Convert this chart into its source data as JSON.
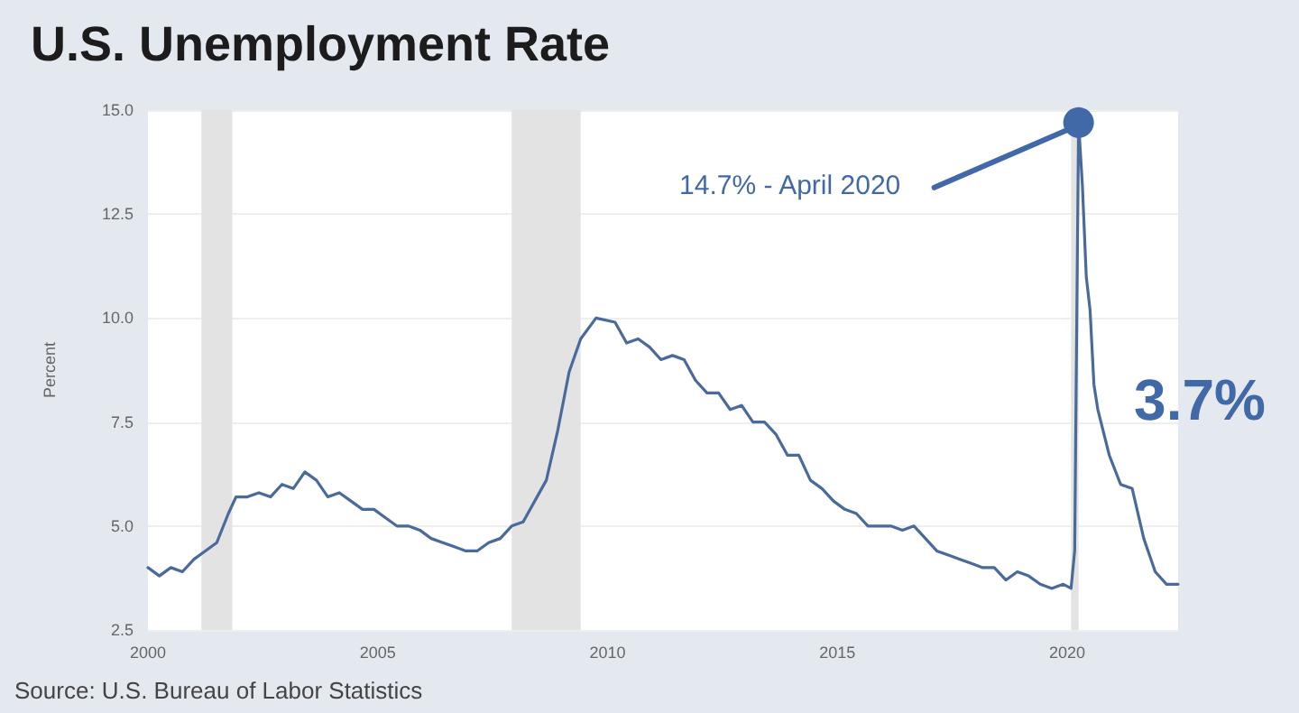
{
  "chart_data": {
    "type": "line",
    "title": "U.S. Unemployment Rate",
    "ylabel": "Percent",
    "x": [
      "2000-01",
      "2000-04",
      "2000-07",
      "2000-10",
      "2001-01",
      "2001-04",
      "2001-07",
      "2001-10",
      "2001-12",
      "2002-03",
      "2002-06",
      "2002-09",
      "2002-12",
      "2003-03",
      "2003-06",
      "2003-09",
      "2003-12",
      "2004-03",
      "2004-06",
      "2004-09",
      "2004-12",
      "2005-03",
      "2005-06",
      "2005-09",
      "2005-12",
      "2006-03",
      "2006-06",
      "2006-09",
      "2006-12",
      "2007-03",
      "2007-06",
      "2007-09",
      "2007-12",
      "2008-03",
      "2008-06",
      "2008-09",
      "2008-12",
      "2009-03",
      "2009-06",
      "2009-10",
      "2010-03",
      "2010-06",
      "2010-09",
      "2010-12",
      "2011-03",
      "2011-06",
      "2011-09",
      "2011-12",
      "2012-03",
      "2012-06",
      "2012-09",
      "2012-12",
      "2013-03",
      "2013-06",
      "2013-09",
      "2013-12",
      "2014-03",
      "2014-06",
      "2014-09",
      "2014-12",
      "2015-03",
      "2015-06",
      "2015-09",
      "2015-12",
      "2016-03",
      "2016-06",
      "2016-09",
      "2016-12",
      "2017-03",
      "2017-06",
      "2017-09",
      "2017-12",
      "2018-03",
      "2018-06",
      "2018-09",
      "2018-12",
      "2019-03",
      "2019-06",
      "2019-09",
      "2019-12",
      "2020-02",
      "2020-03",
      "2020-04",
      "2020-05",
      "2020-06",
      "2020-07",
      "2020-08",
      "2020-09",
      "2020-12",
      "2021-03",
      "2021-06",
      "2021-09",
      "2021-12",
      "2022-03",
      "2022-06"
    ],
    "series": [
      {
        "color": "#4a6a9c",
        "values": [
          4.0,
          3.8,
          4.0,
          3.9,
          4.2,
          4.4,
          4.6,
          5.3,
          5.7,
          5.7,
          5.8,
          5.7,
          6.0,
          5.9,
          6.3,
          6.1,
          5.7,
          5.8,
          5.6,
          5.4,
          5.4,
          5.2,
          5.0,
          5.0,
          4.9,
          4.7,
          4.6,
          4.5,
          4.4,
          4.4,
          4.6,
          4.7,
          5.0,
          5.1,
          5.6,
          6.1,
          7.3,
          8.7,
          9.5,
          10.0,
          9.9,
          9.4,
          9.5,
          9.3,
          9.0,
          9.1,
          9.0,
          8.5,
          8.2,
          8.2,
          7.8,
          7.9,
          7.5,
          7.5,
          7.2,
          6.7,
          6.7,
          6.1,
          5.9,
          5.6,
          5.4,
          5.3,
          5.0,
          5.0,
          5.0,
          4.9,
          5.0,
          4.7,
          4.4,
          4.3,
          4.2,
          4.1,
          4.0,
          4.0,
          3.7,
          3.9,
          3.8,
          3.6,
          3.5,
          3.6,
          3.5,
          4.4,
          14.7,
          13.2,
          11.0,
          10.2,
          8.4,
          7.8,
          6.7,
          6.0,
          5.9,
          4.7,
          3.9,
          3.6,
          3.6
        ]
      }
    ],
    "xlim": [
      "2000-01",
      "2022-06"
    ],
    "xticks": [
      "2000",
      "2005",
      "2010",
      "2015",
      "2020"
    ],
    "ylim": [
      2.5,
      15
    ],
    "yticks": [
      2.5,
      {
        "value": 5,
        "label": "5.0"
      },
      7.5,
      {
        "value": 10,
        "label": "10.0"
      },
      12.5,
      {
        "value": 15,
        "label": "15.0"
      }
    ],
    "grid": "y",
    "marker": "none",
    "line_style": "solid",
    "bands": [
      {
        "axis": "x",
        "from": "2001-03",
        "to": "2001-11",
        "color": "#e3e3e3"
      },
      {
        "axis": "x",
        "from": "2007-12",
        "to": "2009-06",
        "color": "#e3e3e3"
      },
      {
        "axis": "x",
        "from": "2020-02",
        "to": "2020-04",
        "color": "#e3e3e3"
      }
    ],
    "annotations": [
      {
        "text": "14.7% - April 2020",
        "x": "2020-04",
        "y": 14.7
      },
      {
        "text": "3.7%",
        "x": "2022-06",
        "y": 3.7
      },
      "Source: U.S. Bureau of Labor Statistics"
    ]
  }
}
